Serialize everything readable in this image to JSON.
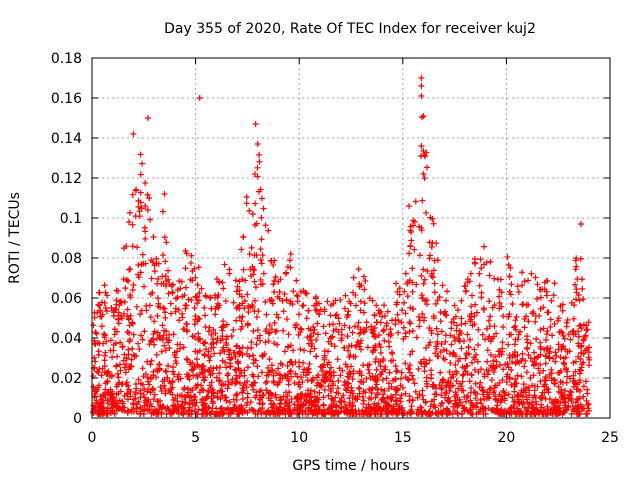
{
  "chart_data": {
    "type": "scatter",
    "title": "Day 355 of 2020, Rate Of TEC Index for receiver kuj2",
    "xlabel": "GPS time / hours",
    "ylabel": "ROTI / TECUs",
    "xlim": [
      0,
      25
    ],
    "ylim": [
      0,
      0.18
    ],
    "xticks": [
      0,
      5,
      10,
      15,
      20,
      25
    ],
    "yticks": [
      0,
      0.02,
      0.04,
      0.06,
      0.08,
      0.1,
      0.12,
      0.14,
      0.16,
      0.18
    ],
    "xtick_labels": [
      "0",
      "5",
      "10",
      "15",
      "20",
      "25"
    ],
    "ytick_labels": [
      "0",
      "0.02",
      "0.04",
      "0.06",
      "0.08",
      "0.1",
      "0.12",
      "0.14",
      "0.16",
      "0.18"
    ],
    "grid": true,
    "marker": "+",
    "marker_color": "#ff0000",
    "series": [
      {
        "name": "ROTI",
        "envelope": [
          {
            "x": 0.0,
            "y": 0.05
          },
          {
            "x": 0.5,
            "y": 0.074
          },
          {
            "x": 1.0,
            "y": 0.06
          },
          {
            "x": 1.5,
            "y": 0.085
          },
          {
            "x": 2.0,
            "y": 0.125
          },
          {
            "x": 2.5,
            "y": 0.15
          },
          {
            "x": 3.0,
            "y": 0.09
          },
          {
            "x": 3.5,
            "y": 0.112
          },
          {
            "x": 4.0,
            "y": 0.06
          },
          {
            "x": 4.5,
            "y": 0.095
          },
          {
            "x": 5.0,
            "y": 0.085
          },
          {
            "x": 5.5,
            "y": 0.065
          },
          {
            "x": 6.0,
            "y": 0.07
          },
          {
            "x": 6.5,
            "y": 0.088
          },
          {
            "x": 7.0,
            "y": 0.07
          },
          {
            "x": 7.5,
            "y": 0.12
          },
          {
            "x": 8.0,
            "y": 0.147
          },
          {
            "x": 8.5,
            "y": 0.1
          },
          {
            "x": 9.0,
            "y": 0.07
          },
          {
            "x": 9.5,
            "y": 0.088
          },
          {
            "x": 10.0,
            "y": 0.075
          },
          {
            "x": 10.5,
            "y": 0.065
          },
          {
            "x": 11.0,
            "y": 0.06
          },
          {
            "x": 11.5,
            "y": 0.06
          },
          {
            "x": 12.0,
            "y": 0.068
          },
          {
            "x": 12.5,
            "y": 0.07
          },
          {
            "x": 13.0,
            "y": 0.08
          },
          {
            "x": 13.5,
            "y": 0.06
          },
          {
            "x": 14.0,
            "y": 0.06
          },
          {
            "x": 14.5,
            "y": 0.07
          },
          {
            "x": 15.0,
            "y": 0.075
          },
          {
            "x": 15.5,
            "y": 0.11
          },
          {
            "x": 16.0,
            "y": 0.17
          },
          {
            "x": 16.5,
            "y": 0.1
          },
          {
            "x": 17.0,
            "y": 0.07
          },
          {
            "x": 17.5,
            "y": 0.06
          },
          {
            "x": 18.0,
            "y": 0.07
          },
          {
            "x": 18.5,
            "y": 0.09
          },
          {
            "x": 19.0,
            "y": 0.092
          },
          {
            "x": 19.5,
            "y": 0.07
          },
          {
            "x": 20.0,
            "y": 0.085
          },
          {
            "x": 20.5,
            "y": 0.07
          },
          {
            "x": 21.0,
            "y": 0.08
          },
          {
            "x": 21.5,
            "y": 0.07
          },
          {
            "x": 22.0,
            "y": 0.075
          },
          {
            "x": 22.5,
            "y": 0.065
          },
          {
            "x": 23.0,
            "y": 0.05
          },
          {
            "x": 23.5,
            "y": 0.097
          },
          {
            "x": 24.0,
            "y": 0.045
          }
        ]
      }
    ],
    "highlight_points": [
      {
        "x": 5.2,
        "y": 0.16
      },
      {
        "x": 2.7,
        "y": 0.15
      },
      {
        "x": 2.0,
        "y": 0.142
      },
      {
        "x": 7.9,
        "y": 0.147
      },
      {
        "x": 8.0,
        "y": 0.137
      },
      {
        "x": 15.9,
        "y": 0.17
      },
      {
        "x": 15.9,
        "y": 0.166
      },
      {
        "x": 15.9,
        "y": 0.161
      },
      {
        "x": 16.0,
        "y": 0.151
      },
      {
        "x": 15.9,
        "y": 0.136
      },
      {
        "x": 16.0,
        "y": 0.122
      },
      {
        "x": 15.3,
        "y": 0.106
      },
      {
        "x": 23.6,
        "y": 0.097
      },
      {
        "x": 3.5,
        "y": 0.112
      }
    ]
  }
}
